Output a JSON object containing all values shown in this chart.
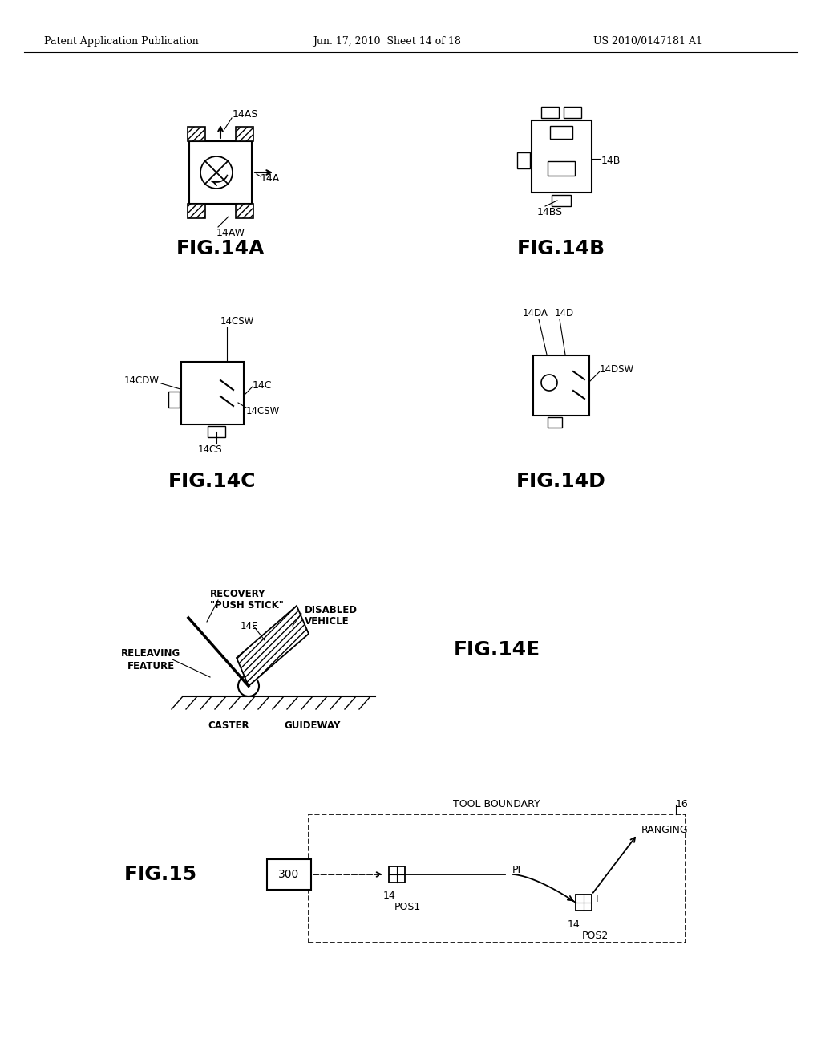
{
  "bg_color": "#ffffff",
  "header_left": "Patent Application Publication",
  "header_mid": "Jun. 17, 2010  Sheet 14 of 18",
  "header_right": "US 2010/0147181 A1",
  "fig14a_label": "FIG.14A",
  "fig14b_label": "FIG.14B",
  "fig14c_label": "FIG.14C",
  "fig14d_label": "FIG.14D",
  "fig14e_label": "FIG.14E",
  "fig15_label": "FIG.15"
}
